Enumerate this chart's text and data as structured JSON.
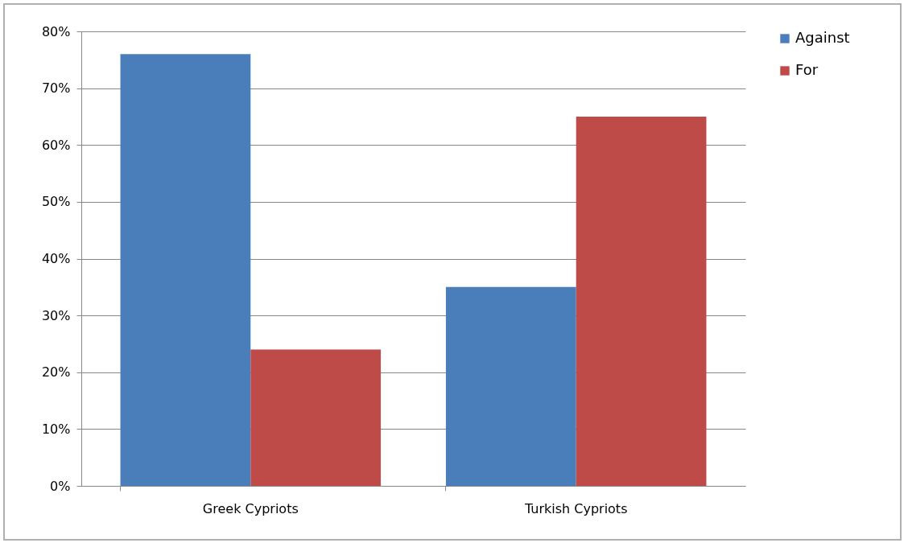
{
  "chart_data": {
    "type": "bar",
    "categories": [
      "Greek Cypriots",
      "Turkish Cypriots"
    ],
    "series": [
      {
        "name": "Against",
        "color": "#4a7ebb",
        "values": [
          76,
          35
        ]
      },
      {
        "name": "For",
        "color": "#be4b48",
        "values": [
          24,
          65
        ]
      }
    ],
    "ylim": [
      0,
      80
    ],
    "yticks": [
      {
        "value": 0,
        "label": "0%"
      },
      {
        "value": 10,
        "label": "10%"
      },
      {
        "value": 20,
        "label": "20%"
      },
      {
        "value": 30,
        "label": "30%"
      },
      {
        "value": 40,
        "label": "40%"
      },
      {
        "value": 50,
        "label": "50%"
      },
      {
        "value": 60,
        "label": "60%"
      },
      {
        "value": 70,
        "label": "70%"
      },
      {
        "value": 80,
        "label": "80%"
      }
    ],
    "grid": "y",
    "legend": "right"
  }
}
